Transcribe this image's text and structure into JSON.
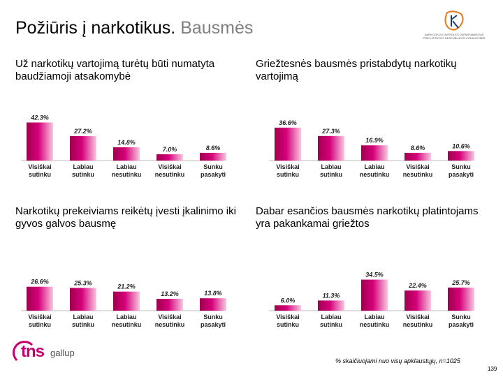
{
  "header": {
    "title_main": "Požiūris į narkotikus.",
    "title_sub": "Bausmės",
    "logo_lines": [
      "NARKOTIKŲ KONTROLĖS DEPARTAMENTAS",
      "PRIE LIETUVOS RESPUBLIKOS VYRIAUSYBĖS"
    ]
  },
  "colors": {
    "bar_dark": "#a0004f",
    "bar_mid": "#d6007a",
    "bar_light": "#f7c8e0",
    "brand": "#c8006e"
  },
  "chart_data": [
    {
      "type": "bar",
      "title": "Už narkotikų vartojimą turėtų būti numatyta baudžiamoji atsakomybė",
      "categories": [
        "Visiškai sutinku",
        "Labiau sutinku",
        "Labiau nesutinku",
        "Visiškai nesutinku",
        "Sunku pasakyti"
      ],
      "values": [
        42.3,
        27.2,
        14.8,
        7.0,
        8.6
      ],
      "value_labels": [
        "42.3%",
        "27.2%",
        "14.8%",
        "7.0%",
        "8.6%"
      ],
      "ylim": [
        0,
        45
      ]
    },
    {
      "type": "bar",
      "title": "Griežtesnės bausmės pristabdytų narkotikų vartojimą",
      "categories": [
        "Visiškai sutinku",
        "Labiau sutinku",
        "Labiau nesutinku",
        "Visiškai nesutinku",
        "Sunku pasakyti"
      ],
      "values": [
        36.6,
        27.3,
        16.9,
        8.6,
        10.6
      ],
      "value_labels": [
        "36.6%",
        "27.3%",
        "16.9%",
        "8.6%",
        "10.6%"
      ],
      "ylim": [
        0,
        45
      ]
    },
    {
      "type": "bar",
      "title": "Narkotikų prekeiviams reikėtų įvesti įkalinimo iki gyvos galvos bausmę",
      "categories": [
        "Visiškai sutinku",
        "Labiau sutinku",
        "Labiau nesutinku",
        "Visiškai nesutinku",
        "Sunku pasakyti"
      ],
      "values": [
        26.6,
        25.3,
        21.2,
        13.2,
        13.8
      ],
      "value_labels": [
        "26.6%",
        "25.3%",
        "21.2%",
        "13.2%",
        "13.8%"
      ],
      "ylim": [
        0,
        45
      ]
    },
    {
      "type": "bar",
      "title": "Dabar esančios bausmės narkotikų platintojams yra pakankamai griežtos",
      "categories": [
        "Visiškai sutinku",
        "Labiau sutinku",
        "Labiau nesutinku",
        "Visiškai nesutinku",
        "Sunku pasakyti"
      ],
      "values": [
        6.0,
        11.3,
        34.5,
        22.4,
        25.7
      ],
      "value_labels": [
        "6.0%",
        "11.3%",
        "34.5%",
        "22.4%",
        "25.7%"
      ],
      "ylim": [
        0,
        45
      ]
    }
  ],
  "footer": {
    "brand_main": "tns",
    "brand_sub": "gallup",
    "footnote": "% skaičiuojami nuo visų apklaustųjų, n=1025",
    "page_number": "139"
  }
}
